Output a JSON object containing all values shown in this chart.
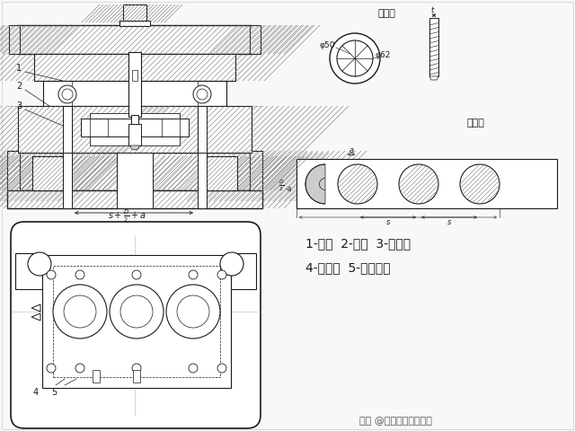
{
  "bg_color": "#f5f5f5",
  "label_line1": "1-凸模  2-凹模  3-挡料杆",
  "label_line2": "4-侧压板  5-侧压簧片",
  "watermark": "头条 @金属板材成形之家",
  "workpiece_label": "工件图",
  "strip_label": "排样图",
  "phi50": "φ50",
  "phi62": "φ62",
  "hatch_color": "#777777",
  "line_color": "#1a1a1a",
  "label_fontsize": 10,
  "small_fontsize": 7,
  "watermark_fontsize": 8,
  "note_fontsize": 7
}
